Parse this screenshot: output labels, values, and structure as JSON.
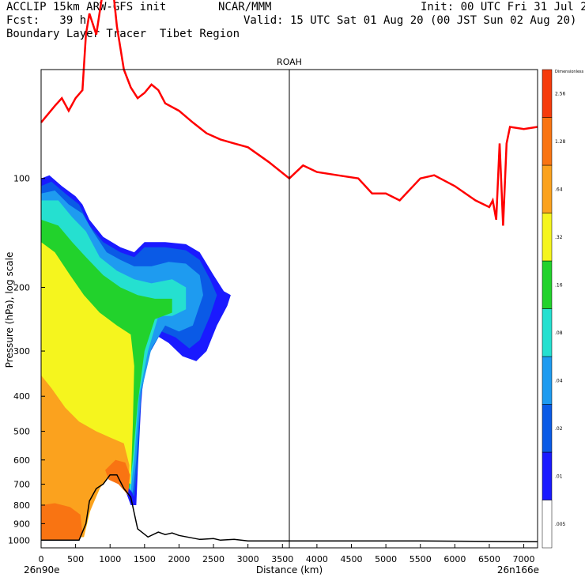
{
  "header": {
    "line1_left": "ACCLIP 15km ARW-GFS init",
    "line1_mid": "NCAR/MMM",
    "line1_right": "Init: 00 UTC Fri 31 Jul 20",
    "line2_left": "Fcst:   39 h",
    "line2_right": "Valid: 15 UTC Sat 01 Aug 20 (00 JST Sun 02 Aug 20)",
    "line3_left": "Boundary Layer Tracer  Tibet Region"
  },
  "chart_data": {
    "type": "heatmap",
    "title": "ROAH",
    "xlabel": "Distance (km)",
    "ylabel": "Pressure (hPa), log scale",
    "xlim": [
      0,
      7200
    ],
    "ylim": [
      1050,
      50
    ],
    "y_scale": "log",
    "x_ticks": [
      "0",
      "500",
      "1000",
      "1500",
      "2000",
      "2500",
      "3000",
      "3500",
      "4000",
      "4500",
      "5000",
      "5500",
      "6000",
      "6500",
      "7000"
    ],
    "y_ticks": [
      100,
      200,
      300,
      400,
      500,
      600,
      700,
      800,
      900,
      1000
    ],
    "x_end_labels": {
      "left": "26n90e",
      "right": "26n166e"
    },
    "vertical_marker_km": 3600,
    "colorbar": {
      "title": "Dimensionless",
      "labels": [
        ".005",
        ".01",
        ".02",
        ".04",
        ".08",
        ".16",
        ".32",
        ".64",
        "1.28",
        "2.56"
      ],
      "colors": [
        "#ffffff",
        "#1a1aff",
        "#0a5ae6",
        "#1e9bf0",
        "#25e0d0",
        "#22d22c",
        "#f5f51e",
        "#fba21e",
        "#f97412",
        "#f53b0c"
      ]
    },
    "tropopause_line": {
      "color": "#ff0000",
      "points": [
        [
          0,
          70
        ],
        [
          200,
          63
        ],
        [
          300,
          60
        ],
        [
          400,
          65
        ],
        [
          500,
          60
        ],
        [
          600,
          57
        ],
        [
          650,
          40
        ],
        [
          700,
          35
        ],
        [
          800,
          40
        ],
        [
          900,
          30
        ],
        [
          1000,
          25
        ],
        [
          1100,
          38
        ],
        [
          1200,
          50
        ],
        [
          1300,
          56
        ],
        [
          1400,
          60
        ],
        [
          1500,
          58
        ],
        [
          1600,
          55
        ],
        [
          1700,
          57
        ],
        [
          1800,
          62
        ],
        [
          2000,
          65
        ],
        [
          2200,
          70
        ],
        [
          2400,
          75
        ],
        [
          2600,
          78
        ],
        [
          2800,
          80
        ],
        [
          3000,
          82
        ],
        [
          3300,
          90
        ],
        [
          3600,
          100
        ],
        [
          3800,
          92
        ],
        [
          4000,
          96
        ],
        [
          4300,
          98
        ],
        [
          4600,
          100
        ],
        [
          4800,
          110
        ],
        [
          5000,
          110
        ],
        [
          5200,
          115
        ],
        [
          5500,
          100
        ],
        [
          5700,
          98
        ],
        [
          6000,
          105
        ],
        [
          6300,
          115
        ],
        [
          6500,
          120
        ],
        [
          6550,
          115
        ],
        [
          6600,
          130
        ],
        [
          6650,
          80
        ],
        [
          6700,
          135
        ],
        [
          6750,
          80
        ],
        [
          6800,
          72
        ],
        [
          7000,
          73
        ],
        [
          7200,
          72
        ]
      ]
    },
    "terrain_line": {
      "color": "#000000",
      "points": [
        [
          0,
          1000
        ],
        [
          300,
          1000
        ],
        [
          550,
          1000
        ],
        [
          650,
          900
        ],
        [
          700,
          780
        ],
        [
          800,
          720
        ],
        [
          900,
          700
        ],
        [
          1000,
          660
        ],
        [
          1100,
          660
        ],
        [
          1200,
          720
        ],
        [
          1300,
          760
        ],
        [
          1400,
          930
        ],
        [
          1550,
          980
        ],
        [
          1700,
          950
        ],
        [
          1800,
          965
        ],
        [
          1900,
          955
        ],
        [
          2000,
          970
        ],
        [
          2300,
          995
        ],
        [
          2500,
          990
        ],
        [
          2600,
          1000
        ],
        [
          2800,
          995
        ],
        [
          3000,
          1005
        ],
        [
          4000,
          1005
        ],
        [
          5500,
          1005
        ],
        [
          7200,
          1010
        ]
      ]
    },
    "tracer_regions": [
      {
        "level": ".01",
        "bounds": "x 0–1450 km, p 100–1000 hPa; upper lobe x 1300–2800 km, p 150–320 hPa"
      },
      {
        "level": ".08",
        "bounds": "x 0–1400 km, p 110–1000 hPa"
      },
      {
        "level": ".32",
        "bounds": "x 0–1350 km, p 150–1000 hPa"
      },
      {
        "level": ".64",
        "bounds": "x 0–1300 km, p 350–1000 hPa"
      },
      {
        "level": "1.28",
        "bounds": "x 0–600 km, p 800–1000 hPa; x 900–1300 km, p 600–750 hPa"
      }
    ]
  }
}
